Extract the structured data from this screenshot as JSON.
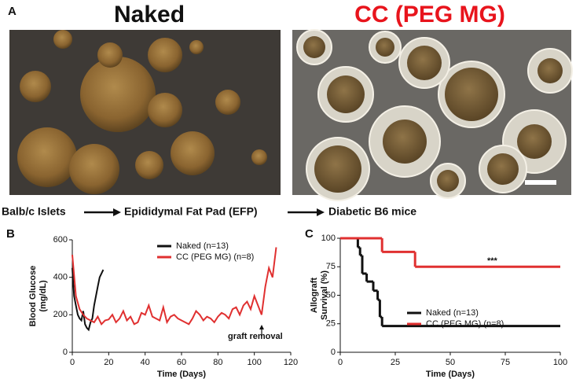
{
  "panel_labels": [
    "A",
    "B",
    "C"
  ],
  "photos": {
    "left_title": "Naked",
    "right_title": "CC (PEG MG)"
  },
  "flow": [
    "Balb/c Islets",
    "Epididymal Fat Pad (EFP)",
    "Diabetic B6 mice"
  ],
  "chart_data": [
    {
      "type": "line",
      "ylabel": [
        "Blood Glucose",
        "(mg/dL)"
      ],
      "xlabel": "Time (Days)",
      "annotation": "graft removal",
      "xlim": [
        0,
        120
      ],
      "ylim": [
        0,
        600
      ],
      "xticks": [
        0,
        20,
        40,
        60,
        80,
        100,
        120
      ],
      "yticks": [
        0,
        200,
        400,
        600
      ],
      "series": [
        {
          "name": "Naked (n=13)",
          "color": "#111111",
          "x": [
            0,
            1,
            2,
            3,
            4,
            5,
            6,
            7,
            8,
            9,
            10,
            11,
            12,
            13,
            14,
            15,
            16,
            17
          ],
          "values": [
            450,
            300,
            250,
            200,
            180,
            170,
            220,
            150,
            130,
            120,
            160,
            180,
            250,
            300,
            350,
            400,
            420,
            440
          ]
        },
        {
          "name": "CC (PEG MG) (n=8)",
          "color": "#e03030",
          "x": [
            0,
            2,
            4,
            6,
            8,
            10,
            12,
            14,
            16,
            18,
            20,
            22,
            24,
            26,
            28,
            30,
            32,
            34,
            36,
            38,
            40,
            42,
            44,
            46,
            48,
            50,
            52,
            54,
            56,
            58,
            60,
            62,
            64,
            66,
            68,
            70,
            72,
            74,
            76,
            78,
            80,
            82,
            84,
            86,
            88,
            90,
            92,
            94,
            96,
            98,
            100,
            102,
            104,
            106,
            108,
            110,
            112
          ],
          "values": [
            520,
            300,
            230,
            200,
            180,
            170,
            160,
            190,
            150,
            170,
            175,
            200,
            160,
            180,
            220,
            170,
            190,
            150,
            160,
            210,
            200,
            250,
            190,
            180,
            170,
            240,
            160,
            190,
            200,
            180,
            170,
            160,
            150,
            180,
            220,
            200,
            170,
            190,
            180,
            160,
            190,
            210,
            200,
            180,
            230,
            240,
            200,
            250,
            270,
            230,
            300,
            250,
            200,
            350,
            450,
            400,
            560
          ]
        }
      ]
    },
    {
      "type": "step",
      "ylabel": [
        "Allograft",
        "Survival (%)"
      ],
      "xlabel": "Time (Days)",
      "annotation": "***",
      "xlim": [
        0,
        100
      ],
      "ylim": [
        0,
        100
      ],
      "xticks": [
        0,
        25,
        50,
        75,
        100
      ],
      "yticks": [
        0,
        25,
        50,
        75,
        100
      ],
      "series": [
        {
          "name": "Naked (n=13)",
          "color": "#111111",
          "x": [
            0,
            8,
            9,
            10,
            12,
            15,
            17,
            18,
            19,
            100
          ],
          "values": [
            100,
            92,
            85,
            69,
            62,
            54,
            46,
            31,
            23,
            23
          ]
        },
        {
          "name": "CC (PEG MG) (n=8)",
          "color": "#e03030",
          "x": [
            0,
            19,
            34,
            100
          ],
          "values": [
            100,
            88,
            75,
            75
          ]
        }
      ]
    }
  ]
}
